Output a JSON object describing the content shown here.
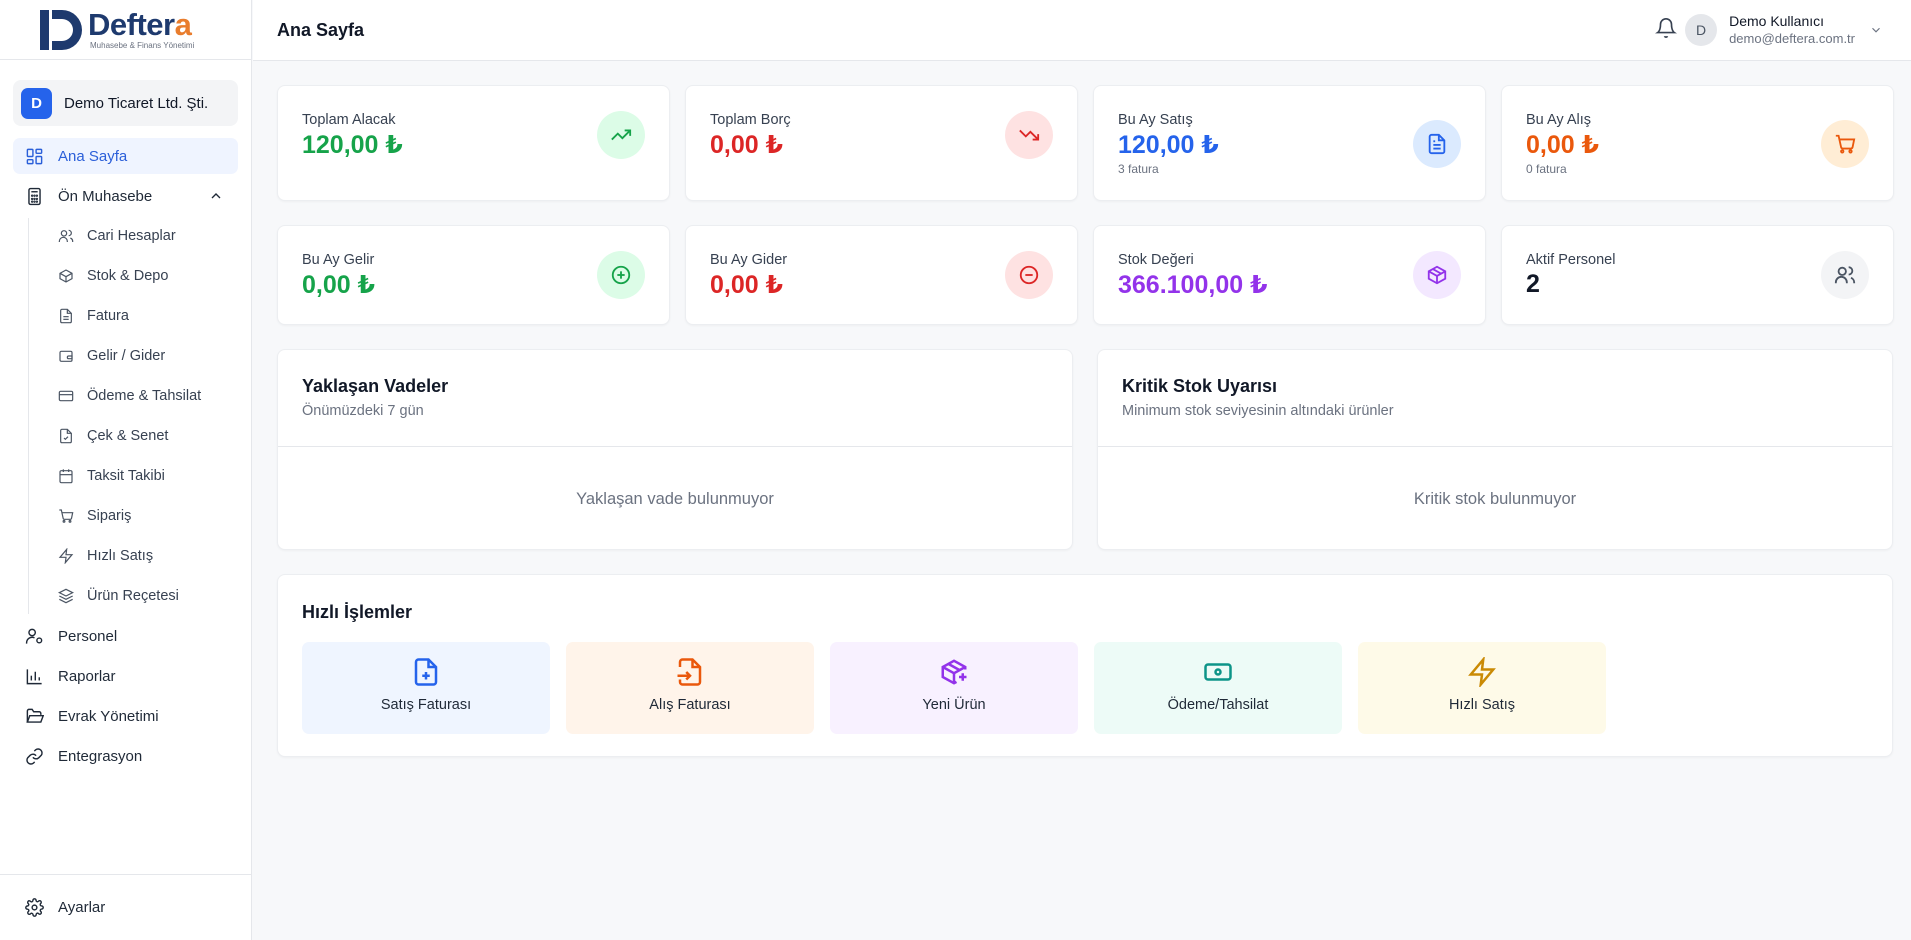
{
  "brand": {
    "name_main": "Deftera",
    "name_accent": "a",
    "name_prefix": "Defter",
    "tagline": "Muhasebe & Finans Yönetimi"
  },
  "company": {
    "initial": "D",
    "name": "Demo Ticaret Ltd. Şti."
  },
  "nav": {
    "home": "Ana Sayfa",
    "pre_accounting": "Ön Muhasebe",
    "sub": [
      "Cari Hesaplar",
      "Stok & Depo",
      "Fatura",
      "Gelir / Gider",
      "Ödeme & Tahsilat",
      "Çek & Senet",
      "Taksit Takibi",
      "Sipariş",
      "Hızlı Satış",
      "Ürün Reçetesi"
    ],
    "personnel": "Personel",
    "reports": "Raporlar",
    "documents": "Evrak Yönetimi",
    "integration": "Entegrasyon",
    "settings": "Ayarlar"
  },
  "header": {
    "title": "Ana Sayfa",
    "user_initial": "D",
    "user_name": "Demo Kullanıcı",
    "user_email": "demo@deftera.com.tr"
  },
  "stats": [
    {
      "label": "Toplam Alacak",
      "value": "120,00 ₺",
      "color": "#16a34a",
      "icon": "trending-up-icon"
    },
    {
      "label": "Toplam Borç",
      "value": "0,00 ₺",
      "color": "#dc2626",
      "icon": "trending-down-icon"
    },
    {
      "label": "Bu Ay Satış",
      "value": "120,00 ₺",
      "sub": "3 fatura",
      "color": "#2563eb",
      "icon": "file-text-icon"
    },
    {
      "label": "Bu Ay Alış",
      "value": "0,00 ₺",
      "sub": "0 fatura",
      "color": "#ea580c",
      "icon": "cart-icon"
    },
    {
      "label": "Bu Ay Gelir",
      "value": "0,00 ₺",
      "color": "#16a34a",
      "icon": "plus-circle-icon"
    },
    {
      "label": "Bu Ay Gider",
      "value": "0,00 ₺",
      "color": "#dc2626",
      "icon": "minus-circle-icon"
    },
    {
      "label": "Stok Değeri",
      "value": "366.100,00 ₺",
      "color": "#9333ea",
      "icon": "package-icon"
    },
    {
      "label": "Aktif Personel",
      "value": "2",
      "color": "#111827",
      "icon": "users-icon"
    }
  ],
  "upcoming": {
    "title": "Yaklaşan Vadeler",
    "subtitle": "Önümüzdeki 7 gün",
    "empty": "Yaklaşan vade bulunmuyor"
  },
  "critical_stock": {
    "title": "Kritik Stok Uyarısı",
    "subtitle": "Minimum stok seviyesinin altındaki ürünler",
    "empty": "Kritik stok bulunmuyor"
  },
  "quick": {
    "title": "Hızlı İşlemler",
    "actions": [
      "Satış Faturası",
      "Alış Faturası",
      "Yeni Ürün",
      "Ödeme/Tahsilat",
      "Hızlı Satış"
    ]
  }
}
